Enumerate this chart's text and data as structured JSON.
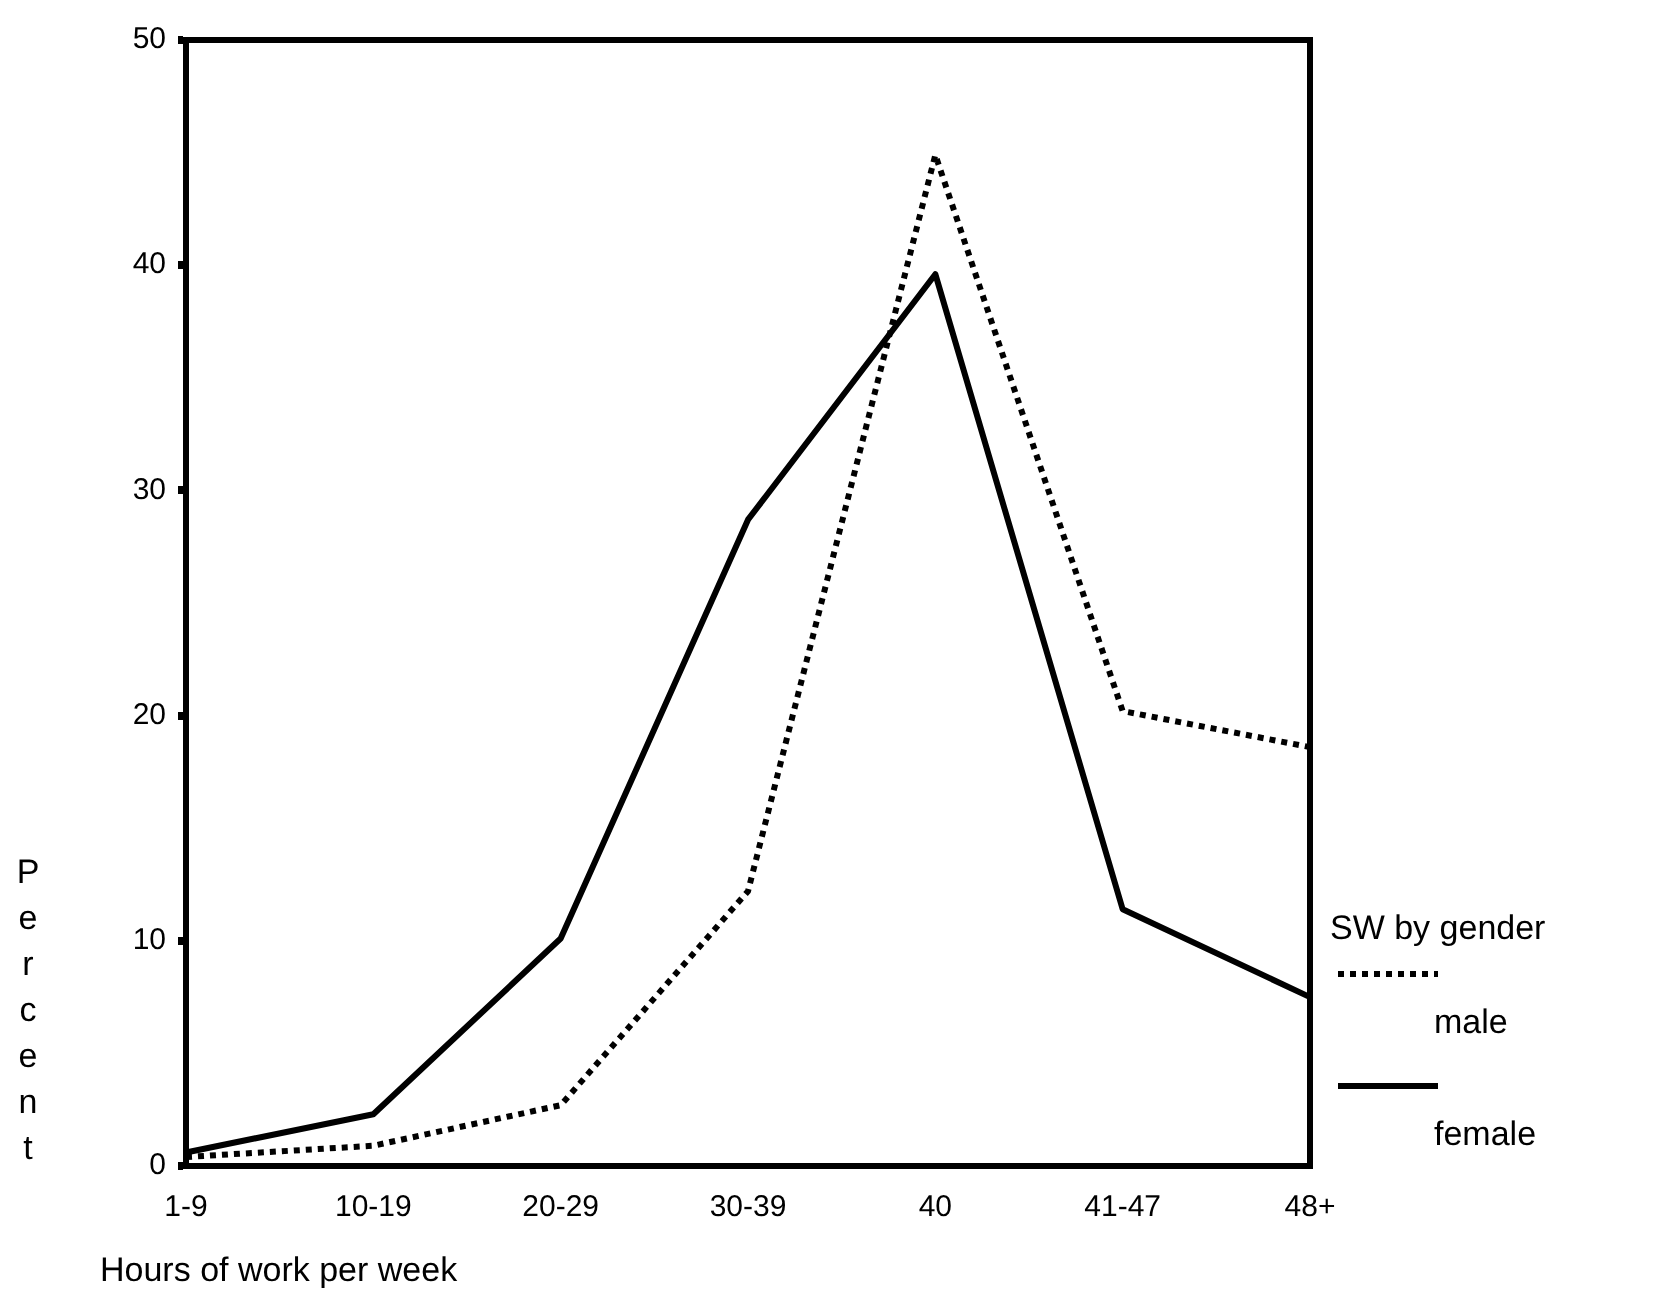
{
  "chart_data": {
    "type": "line",
    "xlabel": "Hours of work per week",
    "ylabel": "Percent",
    "legend_title": "SW by gender",
    "legend": "right",
    "grid": false,
    "marker": "none",
    "categories": [
      "1-9",
      "10-19",
      "20-29",
      "30-39",
      "40",
      "41-47",
      "48+"
    ],
    "ylim": [
      0,
      50
    ],
    "yticks": [
      0,
      10,
      20,
      30,
      40,
      50
    ],
    "series": [
      {
        "name": "male",
        "color": "#000000",
        "line_style": "dotted",
        "values": [
          0.4,
          0.9,
          2.7,
          12.2,
          44.9,
          20.2,
          18.6
        ]
      },
      {
        "name": "female",
        "color": "#000000",
        "line_style": "solid",
        "values": [
          0.6,
          2.3,
          10.1,
          28.7,
          39.6,
          11.4,
          7.5
        ]
      }
    ]
  }
}
